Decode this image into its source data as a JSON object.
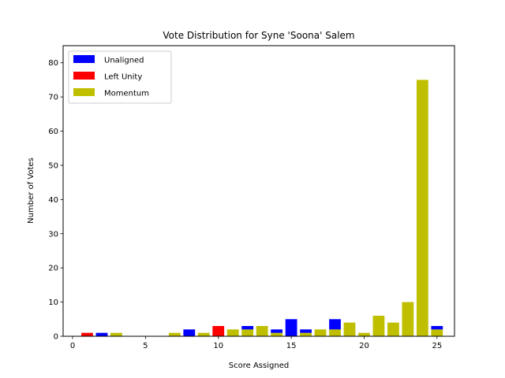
{
  "chart_data": {
    "type": "bar",
    "stacked": true,
    "title": "Vote Distribution for Syne 'Soona' Salem",
    "xlabel": "Score Assigned",
    "ylabel": "Number of Votes",
    "xlim": [
      -0.65,
      26.2
    ],
    "ylim": [
      0,
      85
    ],
    "xticks": [
      0,
      5,
      10,
      15,
      20,
      25
    ],
    "yticks": [
      0,
      10,
      20,
      30,
      40,
      50,
      60,
      70,
      80
    ],
    "grid": false,
    "legend_position": "upper-left",
    "x": [
      0,
      1,
      2,
      3,
      4,
      5,
      6,
      7,
      8,
      9,
      10,
      11,
      12,
      13,
      14,
      15,
      16,
      17,
      18,
      19,
      20,
      21,
      22,
      23,
      24,
      25
    ],
    "series": [
      {
        "name": "Momentum",
        "color": "#bfbf00",
        "values": [
          0,
          0,
          0,
          1,
          0,
          0,
          0,
          1,
          0,
          1,
          0,
          2,
          2,
          3,
          1,
          0,
          1,
          2,
          2,
          4,
          1,
          6,
          4,
          10,
          75,
          2
        ]
      },
      {
        "name": "Left Unity",
        "color": "#ff0000",
        "values": [
          0,
          1,
          0,
          0,
          0,
          0,
          0,
          0,
          0,
          0,
          3,
          0,
          0,
          0,
          0,
          0,
          0,
          0,
          0,
          0,
          0,
          0,
          0,
          0,
          0,
          0
        ]
      },
      {
        "name": "Unaligned",
        "color": "#0000ff",
        "values": [
          0,
          0,
          1,
          0,
          0,
          0,
          0,
          0,
          2,
          0,
          0,
          0,
          1,
          0,
          1,
          5,
          1,
          0,
          3,
          0,
          0,
          0,
          0,
          0,
          0,
          1
        ]
      }
    ],
    "legend_order": [
      "Unaligned",
      "Left Unity",
      "Momentum"
    ]
  }
}
